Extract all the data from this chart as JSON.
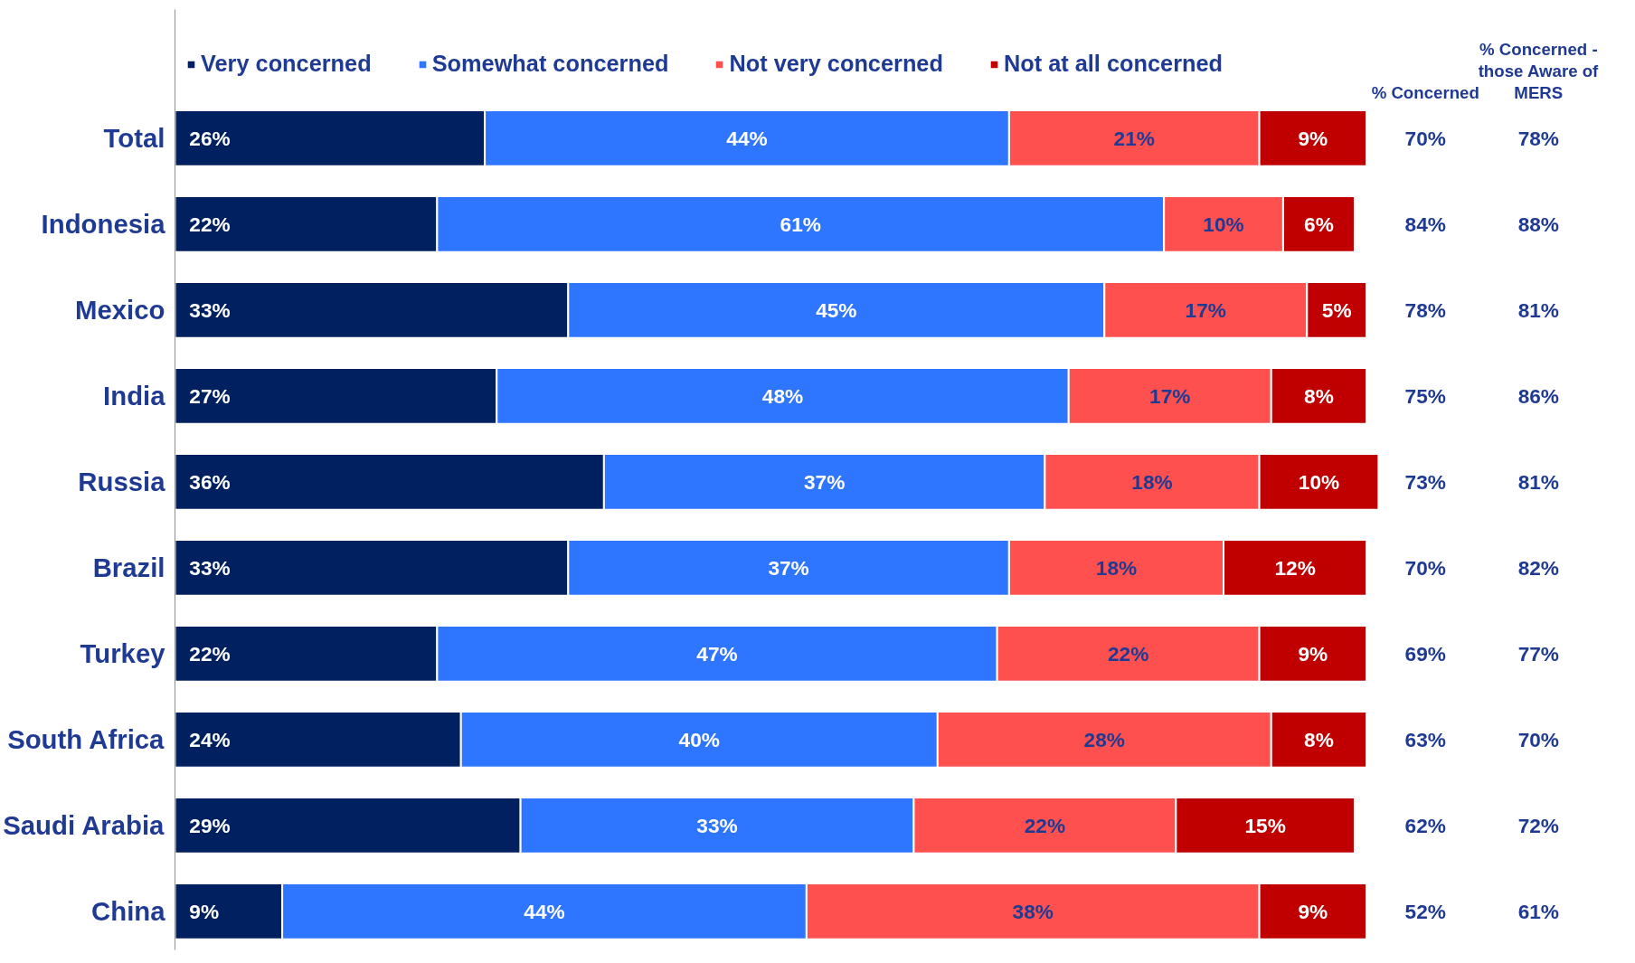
{
  "chart_data": {
    "type": "bar",
    "orientation": "horizontal",
    "stacked": true,
    "legend": "top",
    "grid": false,
    "categories": [
      "Total",
      "Indonesia",
      "Mexico",
      "India",
      "Russia",
      "Brazil",
      "Turkey",
      "South Africa",
      "Saudi Arabia",
      "China"
    ],
    "series": [
      {
        "name": "Very concerned",
        "color": "#002060",
        "values": [
          26,
          22,
          33,
          27,
          36,
          33,
          22,
          24,
          29,
          9
        ],
        "value_labels": [
          "26%",
          "22%",
          "33%",
          "27%",
          "36%",
          "33%",
          "22%",
          "24%",
          "29%",
          "9%"
        ]
      },
      {
        "name": "Somewhat concerned",
        "color": "#2e75ff",
        "values": [
          44,
          61,
          45,
          48,
          37,
          37,
          47,
          40,
          33,
          44
        ],
        "value_labels": [
          "44%",
          "61%",
          "45%",
          "48%",
          "37%",
          "37%",
          "47%",
          "40%",
          "33%",
          "44%"
        ]
      },
      {
        "name": "Not very concerned",
        "color": "#ff5050",
        "values": [
          21,
          10,
          17,
          17,
          18,
          18,
          22,
          28,
          22,
          38
        ],
        "value_labels": [
          "21%",
          "10%",
          "17%",
          "17%",
          "18%",
          "18%",
          "22%",
          "28%",
          "22%",
          "38%"
        ]
      },
      {
        "name": "Not at all concerned",
        "color": "#c00000",
        "values": [
          9,
          6,
          5,
          8,
          10,
          12,
          9,
          8,
          15,
          9
        ],
        "value_labels": [
          "9%",
          "6%",
          "5%",
          "8%",
          "10%",
          "12%",
          "9%",
          "8%",
          "15%",
          "9%"
        ]
      }
    ],
    "annotations": [
      "% Concerned",
      "70%",
      "84%",
      "78%",
      "75%",
      "73%",
      "70%",
      "69%",
      "63%",
      "62%",
      "52%",
      "% Concerned - those Aware of MERS",
      "78%",
      "88%",
      "81%",
      "86%",
      "81%",
      "82%",
      "77%",
      "70%",
      "72%",
      "61%"
    ]
  }
}
